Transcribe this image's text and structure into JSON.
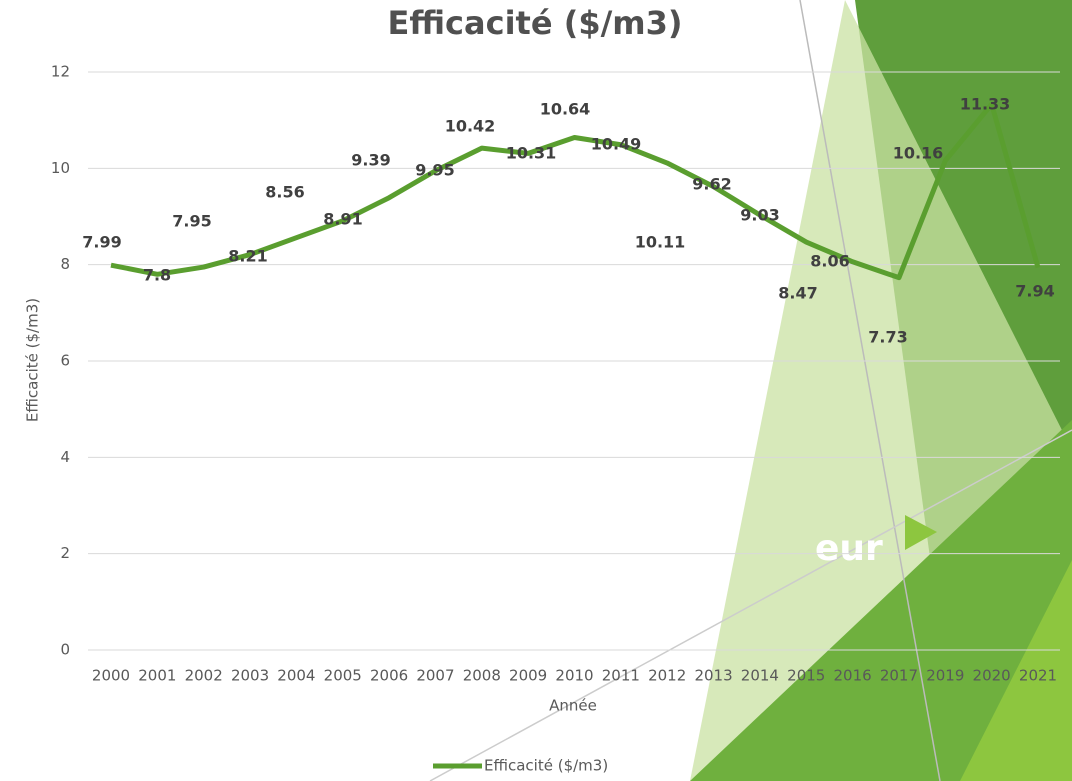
{
  "chart_data": {
    "type": "line",
    "title": "Efficacité ($/m3)",
    "x_label": "Année",
    "y_label": "Efficacité ($/m3)",
    "categories": [
      "2000",
      "2001",
      "2002",
      "2003",
      "2004",
      "2005",
      "2006",
      "2007",
      "2008",
      "2009",
      "2010",
      "2011",
      "2012",
      "2013",
      "2014",
      "2015",
      "2016",
      "2017",
      "2019",
      "2020",
      "2021"
    ],
    "series": [
      {
        "name": "Efficacité ($/m3)",
        "color": "#5a9e2f",
        "values": [
          7.99,
          7.8,
          7.95,
          8.21,
          8.56,
          8.91,
          9.39,
          9.95,
          10.42,
          10.31,
          10.64,
          10.49,
          10.11,
          9.62,
          9.03,
          8.47,
          8.06,
          7.73,
          10.16,
          11.33,
          7.94
        ]
      }
    ],
    "ylim": [
      0,
      12
    ],
    "yticks": [
      0,
      2,
      4,
      6,
      8,
      10,
      12
    ],
    "grid": true,
    "legend": "bottom",
    "overlay_text": "eur"
  }
}
